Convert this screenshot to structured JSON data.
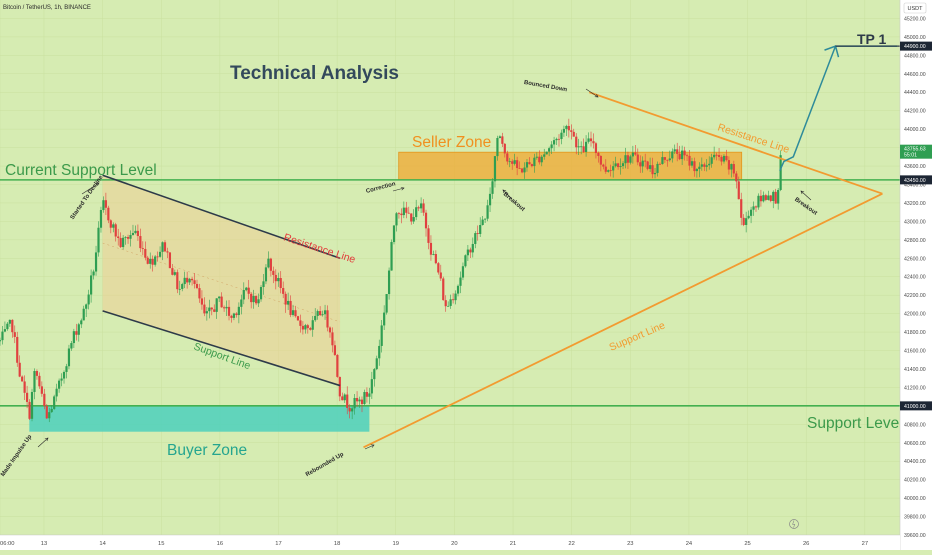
{
  "header": {
    "symbol": "Bitcoin / TetherUS, 1h, BINANCE",
    "currency": "USDT"
  },
  "chart_data": {
    "type": "candlestick",
    "title": "Technical Analysis",
    "ylim": [
      39600,
      45400
    ],
    "y_ticks": [
      39600,
      39800,
      40000,
      40200,
      40400,
      40600,
      40800,
      41000,
      41200,
      41400,
      41600,
      41800,
      42000,
      42200,
      42400,
      42600,
      42800,
      43000,
      43200,
      43400,
      43600,
      43800,
      44000,
      44200,
      44400,
      44600,
      44800,
      45000,
      45200
    ],
    "x_ticks": [
      "06:00",
      "13",
      "14",
      "15",
      "16",
      "17",
      "18",
      "19",
      "20",
      "21",
      "22",
      "23",
      "24",
      "25",
      "26",
      "27"
    ],
    "x_tick_times": [
      12.25,
      13,
      14,
      15,
      16,
      17,
      18,
      19,
      20,
      21,
      22,
      23,
      24,
      25,
      26,
      27
    ],
    "xlim": [
      12.25,
      27.6
    ],
    "current_price": {
      "value": "43755.63",
      "countdown": "55:01"
    },
    "price_tags": [
      {
        "value": 44900,
        "label": "44900.00"
      },
      {
        "value": 43450,
        "label": "43450.00"
      },
      {
        "value": 41000,
        "label": "41000.00"
      }
    ],
    "levels": [
      {
        "name": "Current Support Level",
        "price": 43450,
        "label_t": 12.35
      },
      {
        "name": "Support Level",
        "price": 41000,
        "label_t": 25.7
      }
    ],
    "zones": [
      {
        "name": "Seller Zone",
        "t_start": 19.05,
        "t_end": 24.9,
        "top": 43750,
        "bottom": 43450,
        "color": "#f0a830"
      },
      {
        "name": "Buyer Zone",
        "t_start": 12.75,
        "t_end": 18.55,
        "top": 41000,
        "bottom": 40720,
        "color": "#4cd0bc"
      }
    ],
    "channel": {
      "upper": [
        [
          14.0,
          43500
        ],
        [
          18.05,
          42600
        ]
      ],
      "lower": [
        [
          14.0,
          42030
        ],
        [
          18.05,
          41220
        ]
      ],
      "upper_label": "Resistance Line",
      "lower_label": "Support Line"
    },
    "triangle": {
      "apex": [
        27.3,
        43300
      ],
      "top_start": [
        22.3,
        44400
      ],
      "bottom_start": [
        18.45,
        40550
      ],
      "top_label": "Resistance Line",
      "bottom_label": "Support Line"
    },
    "projection": {
      "points": [
        [
          25.55,
          43550
        ],
        [
          25.62,
          43650
        ],
        [
          25.78,
          43700
        ],
        [
          26.5,
          44900
        ],
        [
          27.55,
          44900
        ]
      ],
      "label": "TP 1"
    },
    "annotations": [
      {
        "text": "Made Impulse Up",
        "t": 12.55,
        "p": 40450,
        "rotate": -55
      },
      {
        "text": "Started To Decline",
        "t": 13.75,
        "p": 43250,
        "rotate": -55
      },
      {
        "text": "Rebounded Up",
        "t": 17.8,
        "p": 40350,
        "rotate": -30
      },
      {
        "text": "Correction",
        "t": 18.75,
        "p": 43350,
        "rotate": -15
      },
      {
        "text": "Bounced Down",
        "t": 21.55,
        "p": 44450,
        "rotate": 10
      },
      {
        "text": "Breakout",
        "t": 21.0,
        "p": 43200,
        "rotate": 40
      },
      {
        "text": "Breakout",
        "t": 25.98,
        "p": 43150,
        "rotate": 35
      }
    ],
    "series": [
      {
        "anchors": [
          [
            12.25,
            41700
          ],
          [
            12.45,
            41900
          ],
          [
            12.6,
            41300
          ],
          [
            12.75,
            40900
          ],
          [
            12.85,
            41400
          ],
          [
            13.05,
            40850
          ],
          [
            13.25,
            41200
          ],
          [
            13.5,
            41750
          ],
          [
            13.7,
            42050
          ],
          [
            13.85,
            42500
          ],
          [
            14.0,
            43200
          ],
          [
            14.3,
            42750
          ],
          [
            14.55,
            42900
          ],
          [
            14.8,
            42550
          ],
          [
            15.05,
            42750
          ],
          [
            15.3,
            42250
          ],
          [
            15.5,
            42450
          ],
          [
            15.75,
            41950
          ],
          [
            16.0,
            42150
          ],
          [
            16.2,
            41950
          ],
          [
            16.45,
            42250
          ],
          [
            16.65,
            42100
          ],
          [
            16.8,
            42600
          ],
          [
            17.05,
            42250
          ],
          [
            17.3,
            41900
          ],
          [
            17.55,
            41850
          ],
          [
            17.75,
            42050
          ],
          [
            17.9,
            41800
          ],
          [
            18.05,
            41150
          ],
          [
            18.2,
            41000
          ],
          [
            18.4,
            41050
          ],
          [
            18.55,
            41150
          ],
          [
            18.7,
            41600
          ],
          [
            18.85,
            42250
          ],
          [
            19.0,
            43150
          ],
          [
            19.25,
            43050
          ],
          [
            19.45,
            43150
          ],
          [
            19.6,
            42700
          ],
          [
            19.75,
            42400
          ],
          [
            19.85,
            42050
          ],
          [
            20.05,
            42300
          ],
          [
            20.25,
            42700
          ],
          [
            20.45,
            42950
          ],
          [
            20.6,
            43200
          ],
          [
            20.75,
            44000
          ],
          [
            20.9,
            43700
          ],
          [
            21.1,
            43550
          ],
          [
            21.35,
            43650
          ],
          [
            21.55,
            43750
          ],
          [
            21.75,
            43900
          ],
          [
            21.95,
            44050
          ],
          [
            22.15,
            43750
          ],
          [
            22.35,
            43900
          ],
          [
            22.55,
            43550
          ],
          [
            22.8,
            43650
          ],
          [
            23.0,
            43700
          ],
          [
            23.2,
            43650
          ],
          [
            23.4,
            43550
          ],
          [
            23.6,
            43700
          ],
          [
            23.8,
            43750
          ],
          [
            24.0,
            43650
          ],
          [
            24.2,
            43550
          ],
          [
            24.4,
            43700
          ],
          [
            24.6,
            43650
          ],
          [
            24.8,
            43500
          ],
          [
            24.92,
            42900
          ],
          [
            25.0,
            43100
          ],
          [
            25.15,
            43200
          ],
          [
            25.35,
            43300
          ],
          [
            25.5,
            43250
          ],
          [
            25.58,
            43755
          ]
        ]
      }
    ]
  }
}
